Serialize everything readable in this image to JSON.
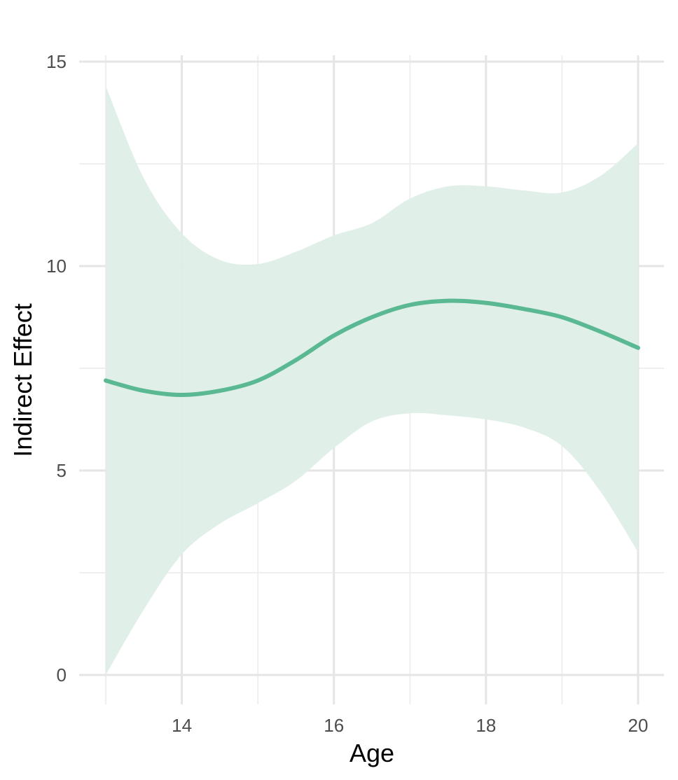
{
  "chart_data": {
    "type": "line",
    "title": "",
    "xlabel": "Age",
    "ylabel": "Indirect Effect",
    "xlim": [
      12.66,
      20.34
    ],
    "ylim": [
      -0.5,
      15.0
    ],
    "x_ticks": [
      14,
      16,
      18,
      20
    ],
    "x_tick_labels": [
      "14",
      "16",
      "18",
      "20"
    ],
    "y_ticks": [
      0,
      5,
      10,
      15
    ],
    "y_tick_labels": [
      "0",
      "5",
      "10",
      "15"
    ],
    "grid": true,
    "legend": "none",
    "colors": {
      "line": "#5ab993",
      "ribbon": "#deefe8",
      "grid_major": "#e5e5e5",
      "grid_minor": "#efefef"
    },
    "x": [
      13.0,
      13.5,
      14.0,
      14.5,
      15.0,
      15.5,
      16.0,
      16.5,
      17.0,
      17.5,
      18.0,
      18.5,
      19.0,
      19.5,
      20.0
    ],
    "series": [
      {
        "y": [
          7.2,
          6.95,
          6.85,
          6.95,
          7.2,
          7.7,
          8.3,
          8.75,
          9.05,
          9.15,
          9.1,
          8.95,
          8.75,
          8.4,
          8.0
        ],
        "y_lower": [
          0.0,
          1.6,
          2.95,
          3.7,
          4.2,
          4.75,
          5.55,
          6.2,
          6.4,
          6.35,
          6.25,
          6.05,
          5.6,
          4.5,
          3.0
        ],
        "y_upper": [
          14.4,
          12.15,
          10.8,
          10.15,
          10.05,
          10.35,
          10.75,
          11.05,
          11.65,
          11.95,
          11.95,
          11.85,
          11.8,
          12.2,
          13.0
        ]
      }
    ]
  }
}
